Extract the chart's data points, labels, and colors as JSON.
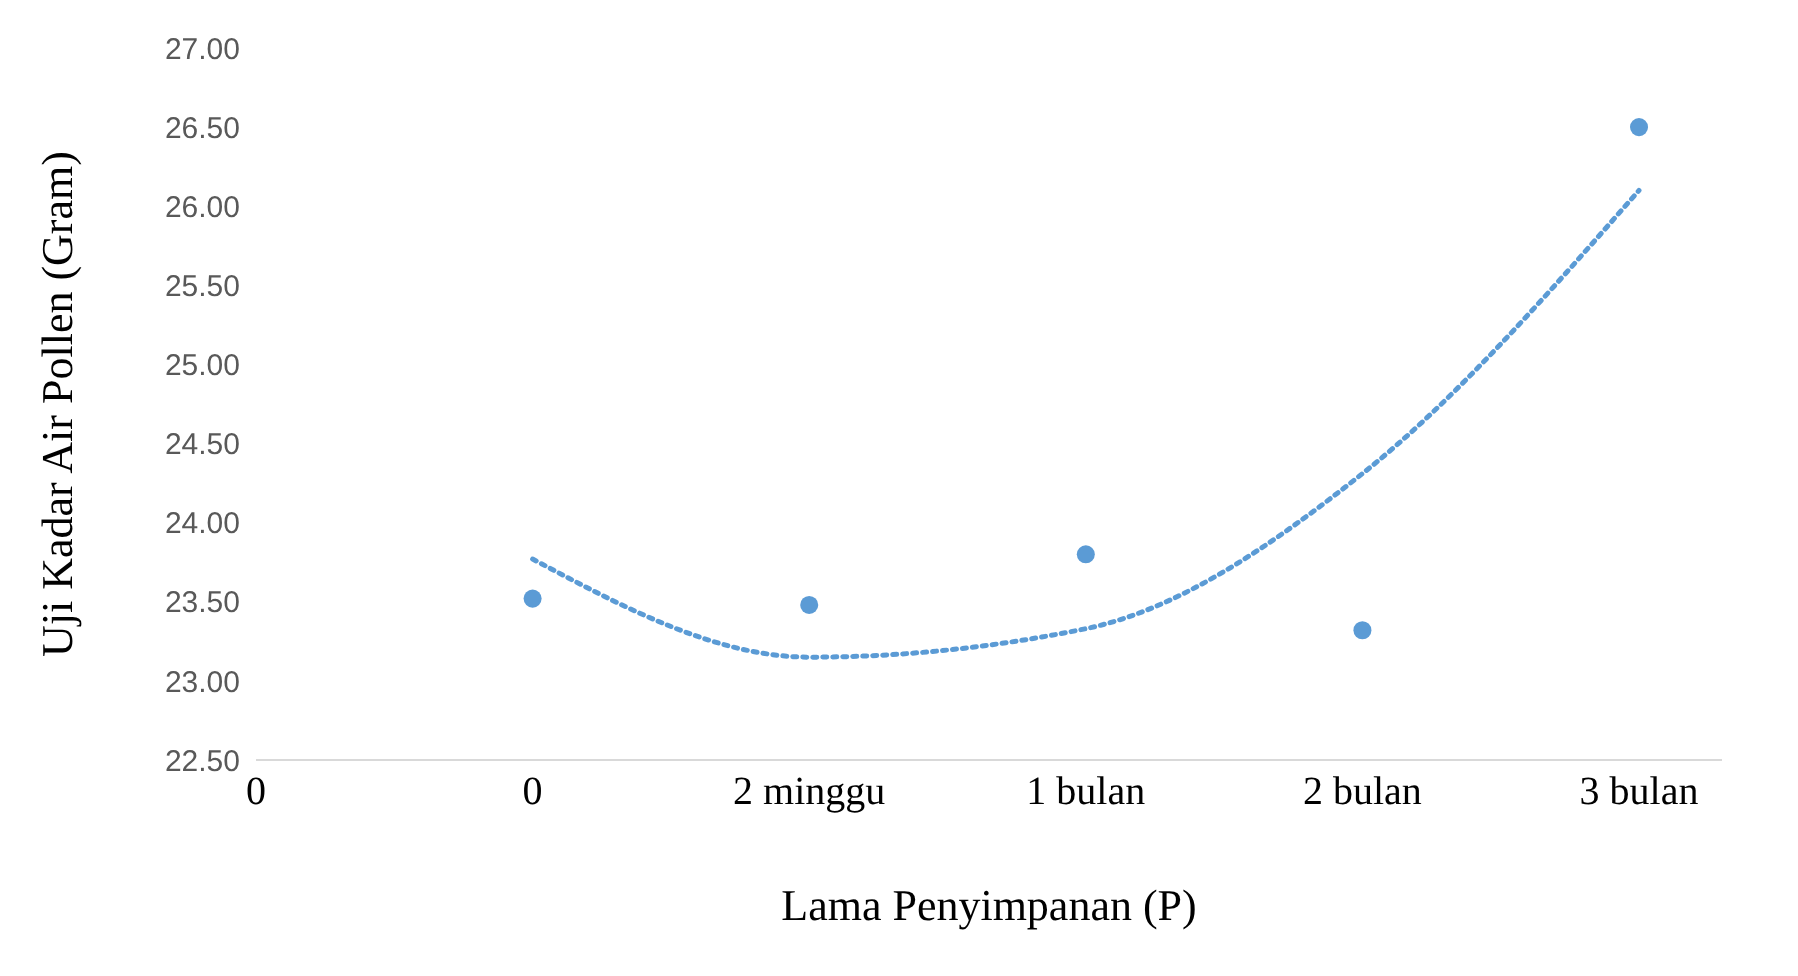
{
  "chart_data": {
    "type": "scatter",
    "xlabel": "Lama Penyimpanan (P)",
    "ylabel": "Uji Kadar Air Pollen (Gram)",
    "categories": [
      "0",
      "0",
      "2 minggu",
      "1 bulan",
      "2 bulan",
      "3 bulan"
    ],
    "ylim": [
      22.5,
      27
    ],
    "yticks": [
      {
        "value": 22.5,
        "label": "22.50"
      },
      {
        "value": 23,
        "label": "23.00"
      },
      {
        "value": 23.5,
        "label": "23.50"
      },
      {
        "value": 24,
        "label": "24.00"
      },
      {
        "value": 24.5,
        "label": "24.50"
      },
      {
        "value": 25,
        "label": "25.00"
      },
      {
        "value": 25.5,
        "label": "25.50"
      },
      {
        "value": 26,
        "label": "26.00"
      },
      {
        "value": 26.5,
        "label": "26.50"
      },
      {
        "value": 27,
        "label": "27.00"
      }
    ],
    "marker": "circle",
    "series": [
      {
        "color": "#5b9bd5",
        "values": [
          null,
          23.52,
          23.48,
          23.8,
          23.32,
          26.5
        ]
      },
      {
        "type": "line",
        "color": "#5b9bd5",
        "line_style": "dotted",
        "marker": "none",
        "values": [
          null,
          23.77,
          23.15,
          23.33,
          24.31,
          26.1
        ]
      }
    ]
  }
}
